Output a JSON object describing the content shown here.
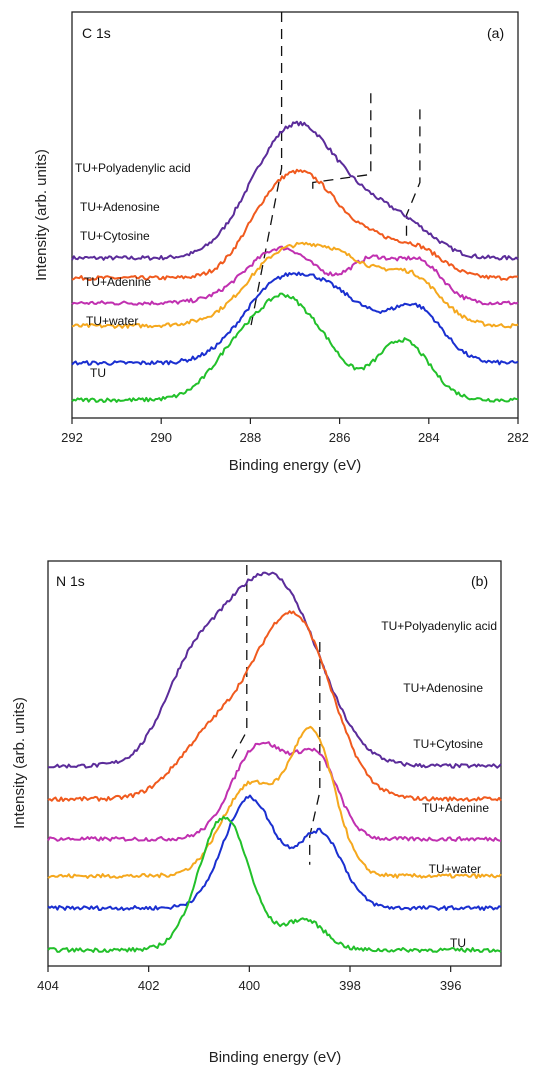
{
  "chart_data": [
    {
      "type": "line",
      "panel_label": "(a)",
      "core_level": "C 1s",
      "xlabel": "Binding energy (eV)",
      "ylabel": "Intensity (arb. units)",
      "xlim": [
        292,
        282
      ],
      "x_reversed": true,
      "xticks": [
        292,
        290,
        288,
        286,
        284,
        282
      ],
      "grid": false,
      "series": [
        {
          "name": "TU+Polyadenylic acid",
          "color": "#5b2c9a",
          "baseline": 160,
          "peaks": [
            {
              "c": 286.8,
              "w": 0.8,
              "a": 115
            },
            {
              "c": 285.3,
              "w": 0.7,
              "a": 40
            },
            {
              "c": 284.3,
              "w": 0.6,
              "a": 20
            },
            {
              "c": 287.8,
              "w": 0.7,
              "a": 40
            }
          ]
        },
        {
          "name": "TU+Adenosine",
          "color": "#f05a1e",
          "baseline": 140,
          "peaks": [
            {
              "c": 286.7,
              "w": 0.8,
              "a": 95
            },
            {
              "c": 285.3,
              "w": 0.5,
              "a": 20
            },
            {
              "c": 284.3,
              "w": 0.6,
              "a": 30
            },
            {
              "c": 287.7,
              "w": 0.6,
              "a": 35
            }
          ]
        },
        {
          "name": "TU+Cytosine",
          "color": "#c030b0",
          "baseline": 115,
          "peaks": [
            {
              "c": 287.3,
              "w": 0.8,
              "a": 55
            },
            {
              "c": 285.3,
              "w": 0.5,
              "a": 40
            },
            {
              "c": 284.2,
              "w": 0.5,
              "a": 40
            }
          ]
        },
        {
          "name": "TU+Adenine",
          "color": "#f5a81e",
          "baseline": 92,
          "peaks": [
            {
              "c": 286.4,
              "w": 1.2,
              "a": 78
            },
            {
              "c": 284.3,
              "w": 0.6,
              "a": 35
            },
            {
              "c": 287.6,
              "w": 0.6,
              "a": 20
            }
          ]
        },
        {
          "name": "TU+water",
          "color": "#1a2fd0",
          "baseline": 55,
          "peaks": [
            {
              "c": 287.4,
              "w": 0.8,
              "a": 75
            },
            {
              "c": 285.6,
              "w": 0.6,
              "a": 35
            },
            {
              "c": 284.3,
              "w": 0.6,
              "a": 55
            },
            {
              "c": 286.4,
              "w": 0.6,
              "a": 35
            }
          ]
        },
        {
          "name": "TU",
          "color": "#22c02a",
          "baseline": 18,
          "peaks": [
            {
              "c": 288.0,
              "w": 0.7,
              "a": 70
            },
            {
              "c": 286.6,
              "w": 0.6,
              "a": 65
            },
            {
              "c": 284.6,
              "w": 0.6,
              "a": 60
            },
            {
              "c": 287.3,
              "w": 0.4,
              "a": 30
            }
          ]
        }
      ],
      "guides": [
        [
          [
            287.3,
            1.0
          ],
          [
            287.3,
            0.615
          ],
          [
            288.0,
            0.22
          ]
        ],
        [
          [
            285.3,
            0.8
          ],
          [
            285.3,
            0.6
          ],
          [
            286.6,
            0.58
          ],
          [
            286.6,
            0.55
          ]
        ],
        [
          [
            284.2,
            0.76
          ],
          [
            284.2,
            0.58
          ],
          [
            284.5,
            0.5
          ],
          [
            284.5,
            0.43
          ]
        ]
      ]
    },
    {
      "type": "line",
      "panel_label": "(b)",
      "core_level": "N 1s",
      "xlabel": "Binding energy (eV)",
      "ylabel": "Intensity (arb. units)",
      "xlim": [
        404,
        395
      ],
      "x_reversed": true,
      "xticks": [
        404,
        402,
        400,
        398,
        396
      ],
      "grid": false,
      "series": [
        {
          "name": "TU+Polyadenylic acid",
          "color": "#5b2c9a",
          "baseline": 200,
          "peaks": [
            {
              "c": 399.3,
              "w": 0.8,
              "a": 150
            },
            {
              "c": 400.5,
              "w": 0.8,
              "a": 100
            },
            {
              "c": 401.3,
              "w": 0.5,
              "a": 40
            }
          ]
        },
        {
          "name": "TU+Adenosine",
          "color": "#f05a1e",
          "baseline": 167,
          "peaks": [
            {
              "c": 399.0,
              "w": 0.7,
              "a": 150
            },
            {
              "c": 400.0,
              "w": 0.8,
              "a": 70
            },
            {
              "c": 401.0,
              "w": 0.6,
              "a": 30
            }
          ]
        },
        {
          "name": "TU+Cytosine",
          "color": "#c030b0",
          "baseline": 127,
          "peaks": [
            {
              "c": 399.9,
              "w": 0.5,
              "a": 80
            },
            {
              "c": 398.6,
              "w": 0.4,
              "a": 65
            },
            {
              "c": 399.2,
              "w": 0.5,
              "a": 35
            }
          ]
        },
        {
          "name": "TU+Adenine",
          "color": "#f5a81e",
          "baseline": 90,
          "peaks": [
            {
              "c": 398.75,
              "w": 0.45,
              "a": 140
            },
            {
              "c": 400.0,
              "w": 0.55,
              "a": 90
            }
          ]
        },
        {
          "name": "TU+water",
          "color": "#1a2fd0",
          "baseline": 58,
          "peaks": [
            {
              "c": 400.0,
              "w": 0.5,
              "a": 110
            },
            {
              "c": 398.6,
              "w": 0.45,
              "a": 75
            }
          ]
        },
        {
          "name": "TU",
          "color": "#22c02a",
          "baseline": 16,
          "peaks": [
            {
              "c": 400.5,
              "w": 0.5,
              "a": 133
            },
            {
              "c": 398.9,
              "w": 0.4,
              "a": 30
            }
          ]
        }
      ],
      "guides": [
        [
          [
            400.05,
            0.99
          ],
          [
            400.05,
            0.58
          ],
          [
            400.4,
            0.5
          ]
        ],
        [
          [
            398.6,
            0.8
          ],
          [
            398.6,
            0.43
          ],
          [
            398.8,
            0.32
          ],
          [
            398.8,
            0.25
          ]
        ]
      ]
    }
  ]
}
